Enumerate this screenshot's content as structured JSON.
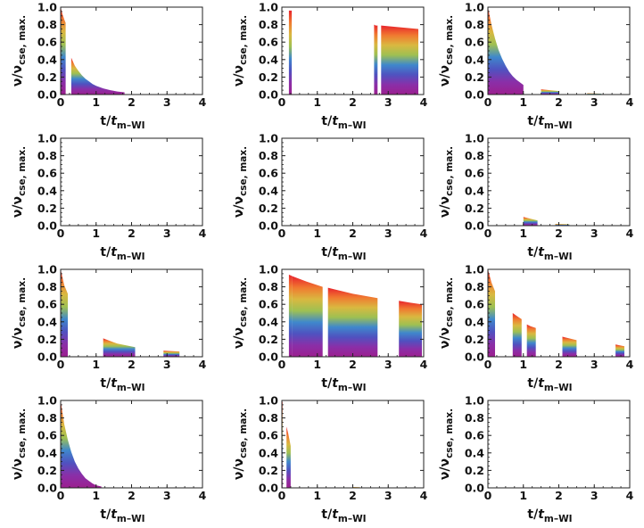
{
  "chart_data": {
    "type": "area",
    "layout": {
      "rows": 4,
      "cols": 3
    },
    "xlabel": {
      "main": "t/",
      "var": "t",
      "sub": "m–WI"
    },
    "ylabel": {
      "main": "ν/ν",
      "sub": "cse, max."
    },
    "xlim": [
      0,
      4
    ],
    "ylim": [
      0,
      1
    ],
    "xticks": [
      "0",
      "1",
      "2",
      "3",
      "4"
    ],
    "yticks": [
      "0.0",
      "0.2",
      "0.4",
      "0.6",
      "0.8",
      "1.0"
    ],
    "colormap": [
      "#e8242c",
      "#f07a30",
      "#d9b840",
      "#9ec052",
      "#3f88cc",
      "#4f52c0",
      "#8a2fa8",
      "#9c1f8f"
    ],
    "panels": [
      {
        "segments": [
          {
            "x": [
              0.0,
              0.05,
              0.1,
              0.14
            ],
            "y": [
              1.0,
              0.92,
              0.86,
              0.82
            ]
          },
          {
            "x": [
              0.3,
              0.4,
              0.5,
              0.6,
              0.7,
              0.8,
              0.9,
              1.0,
              1.2,
              1.4,
              1.6,
              1.8
            ],
            "y": [
              0.42,
              0.33,
              0.27,
              0.22,
              0.18,
              0.15,
              0.12,
              0.1,
              0.07,
              0.05,
              0.035,
              0.025
            ]
          }
        ]
      },
      {
        "segments": [
          {
            "x": [
              0.2,
              0.28
            ],
            "y": [
              0.96,
              0.96
            ]
          },
          {
            "x": [
              2.6,
              2.65,
              2.7
            ],
            "y": [
              0.8,
              0.79,
              0.79
            ]
          },
          {
            "x": [
              2.8,
              3.3,
              3.85
            ],
            "y": [
              0.79,
              0.77,
              0.75
            ]
          }
        ]
      },
      {
        "segments": [
          {
            "x": [
              0.0,
              0.1,
              0.2,
              0.3,
              0.4,
              0.5,
              0.6,
              0.7,
              0.8,
              0.9,
              1.0
            ],
            "y": [
              1.0,
              0.8,
              0.64,
              0.51,
              0.41,
              0.33,
              0.26,
              0.21,
              0.17,
              0.14,
              0.11
            ]
          },
          {
            "x": [
              1.5,
              2.0
            ],
            "y": [
              0.06,
              0.04
            ]
          },
          {
            "x": [
              2.8,
              3.2
            ],
            "y": [
              0.015,
              0.01
            ]
          }
        ]
      },
      {
        "segments": []
      },
      {
        "segments": []
      },
      {
        "segments": [
          {
            "x": [
              1.0,
              1.2,
              1.4
            ],
            "y": [
              0.1,
              0.08,
              0.06
            ]
          },
          {
            "x": [
              1.9,
              2.3
            ],
            "y": [
              0.02,
              0.015
            ]
          }
        ]
      },
      {
        "segments": [
          {
            "x": [
              0.0,
              0.1,
              0.2
            ],
            "y": [
              1.0,
              0.82,
              0.72
            ]
          },
          {
            "x": [
              1.2,
              1.6,
              2.1
            ],
            "y": [
              0.21,
              0.15,
              0.11
            ]
          },
          {
            "x": [
              2.9,
              3.1,
              3.35
            ],
            "y": [
              0.07,
              0.065,
              0.06
            ]
          }
        ]
      },
      {
        "segments": [
          {
            "x": [
              0.2,
              0.3
            ],
            "y": [
              0.94,
              0.92
            ]
          },
          {
            "x": [
              0.3,
              0.7,
              1.15
            ],
            "y": [
              0.92,
              0.86,
              0.8
            ]
          },
          {
            "x": [
              1.3,
              2.0,
              2.7
            ],
            "y": [
              0.79,
              0.72,
              0.67
            ]
          },
          {
            "x": [
              3.3,
              3.6,
              3.95
            ],
            "y": [
              0.64,
              0.62,
              0.6
            ]
          }
        ]
      },
      {
        "segments": [
          {
            "x": [
              0.0,
              0.1,
              0.2
            ],
            "y": [
              1.0,
              0.85,
              0.75
            ]
          },
          {
            "x": [
              0.7,
              0.8,
              0.95
            ],
            "y": [
              0.5,
              0.47,
              0.43
            ]
          },
          {
            "x": [
              1.1,
              1.2,
              1.35
            ],
            "y": [
              0.37,
              0.35,
              0.33
            ]
          },
          {
            "x": [
              2.1,
              2.5
            ],
            "y": [
              0.23,
              0.19
            ]
          },
          {
            "x": [
              3.6,
              3.85
            ],
            "y": [
              0.14,
              0.12
            ]
          }
        ]
      },
      {
        "segments": [
          {
            "x": [
              0.0,
              0.1,
              0.2,
              0.3,
              0.4,
              0.5,
              0.6,
              0.7,
              0.8,
              0.9,
              1.0,
              1.15
            ],
            "y": [
              1.0,
              0.73,
              0.55,
              0.41,
              0.3,
              0.22,
              0.16,
              0.11,
              0.08,
              0.05,
              0.03,
              0.015
            ]
          }
        ]
      },
      {
        "segments": [
          {
            "x": [
              0.0,
              0.02
            ],
            "y": [
              1.0,
              0.98
            ]
          },
          {
            "x": [
              0.13,
              0.18,
              0.25
            ],
            "y": [
              0.7,
              0.62,
              0.48
            ]
          },
          {
            "x": [
              2.0,
              2.2
            ],
            "y": [
              0.01,
              0.008
            ]
          }
        ]
      },
      {
        "segments": []
      }
    ]
  }
}
